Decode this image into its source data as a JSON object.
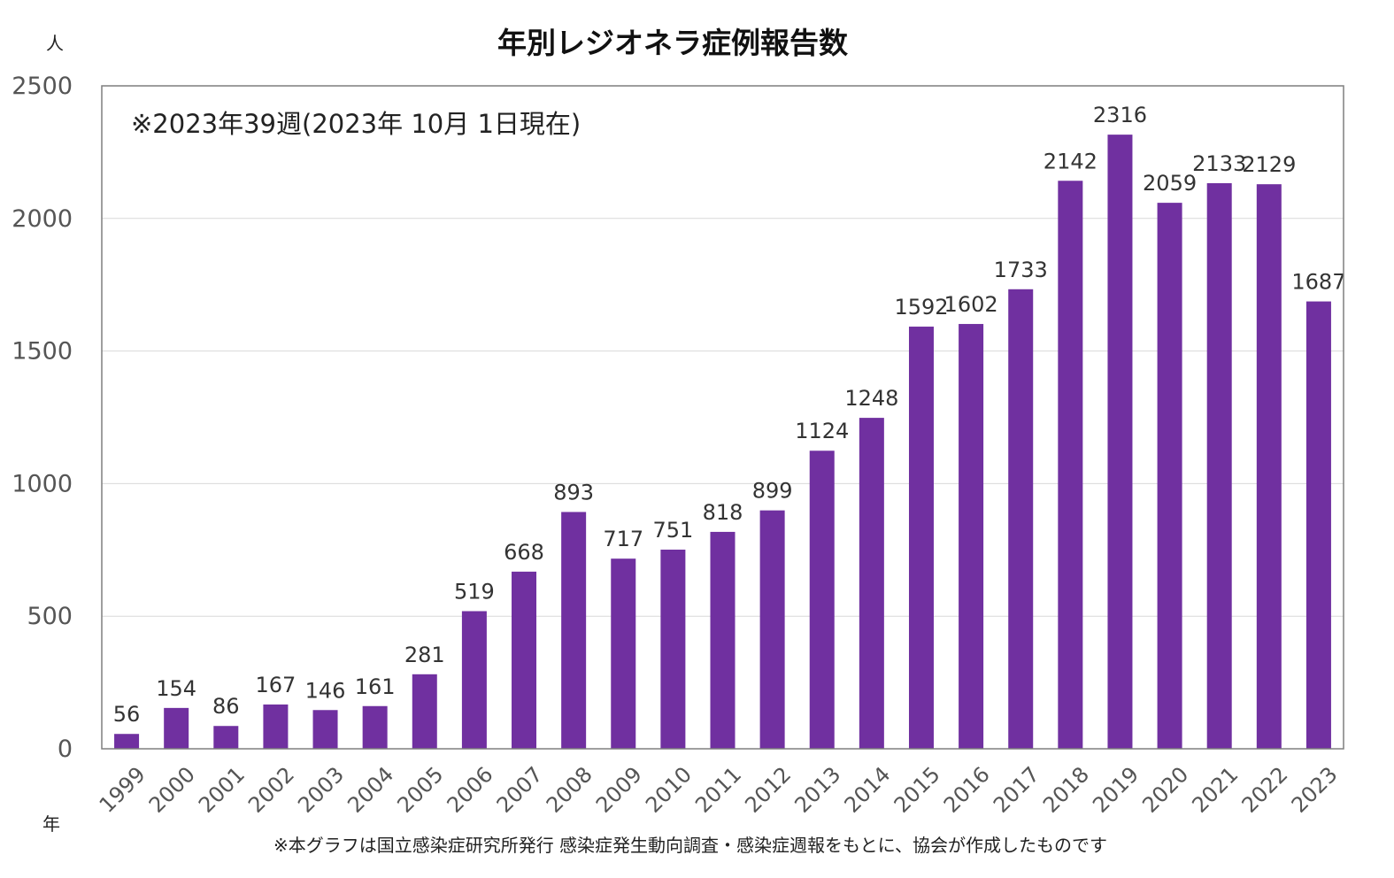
{
  "chart_data": {
    "type": "bar",
    "title": "年別レジオネラ症例報告数",
    "ylabel": "人",
    "xlabel": "年",
    "ylim": [
      0,
      2500
    ],
    "yticks": [
      0,
      500,
      1000,
      1500,
      2000,
      2500
    ],
    "grid": true,
    "bar_color": "#7030a0",
    "annotation": "※2023年39週(2023年 10月 1日現在)",
    "footnote": "※本グラフは国立感染症研究所発行 感染症発生動向調査・感染症週報をもとに、協会が作成したものです",
    "categories": [
      "1999",
      "2000",
      "2001",
      "2002",
      "2003",
      "2004",
      "2005",
      "2006",
      "2007",
      "2008",
      "2009",
      "2010",
      "2011",
      "2012",
      "2013",
      "2014",
      "2015",
      "2016",
      "2017",
      "2018",
      "2019",
      "2020",
      "2021",
      "2022",
      "2023"
    ],
    "values": [
      56,
      154,
      86,
      167,
      146,
      161,
      281,
      519,
      668,
      893,
      717,
      751,
      818,
      899,
      1124,
      1248,
      1592,
      1602,
      1733,
      2142,
      2316,
      2059,
      2133,
      2129,
      1687
    ]
  }
}
